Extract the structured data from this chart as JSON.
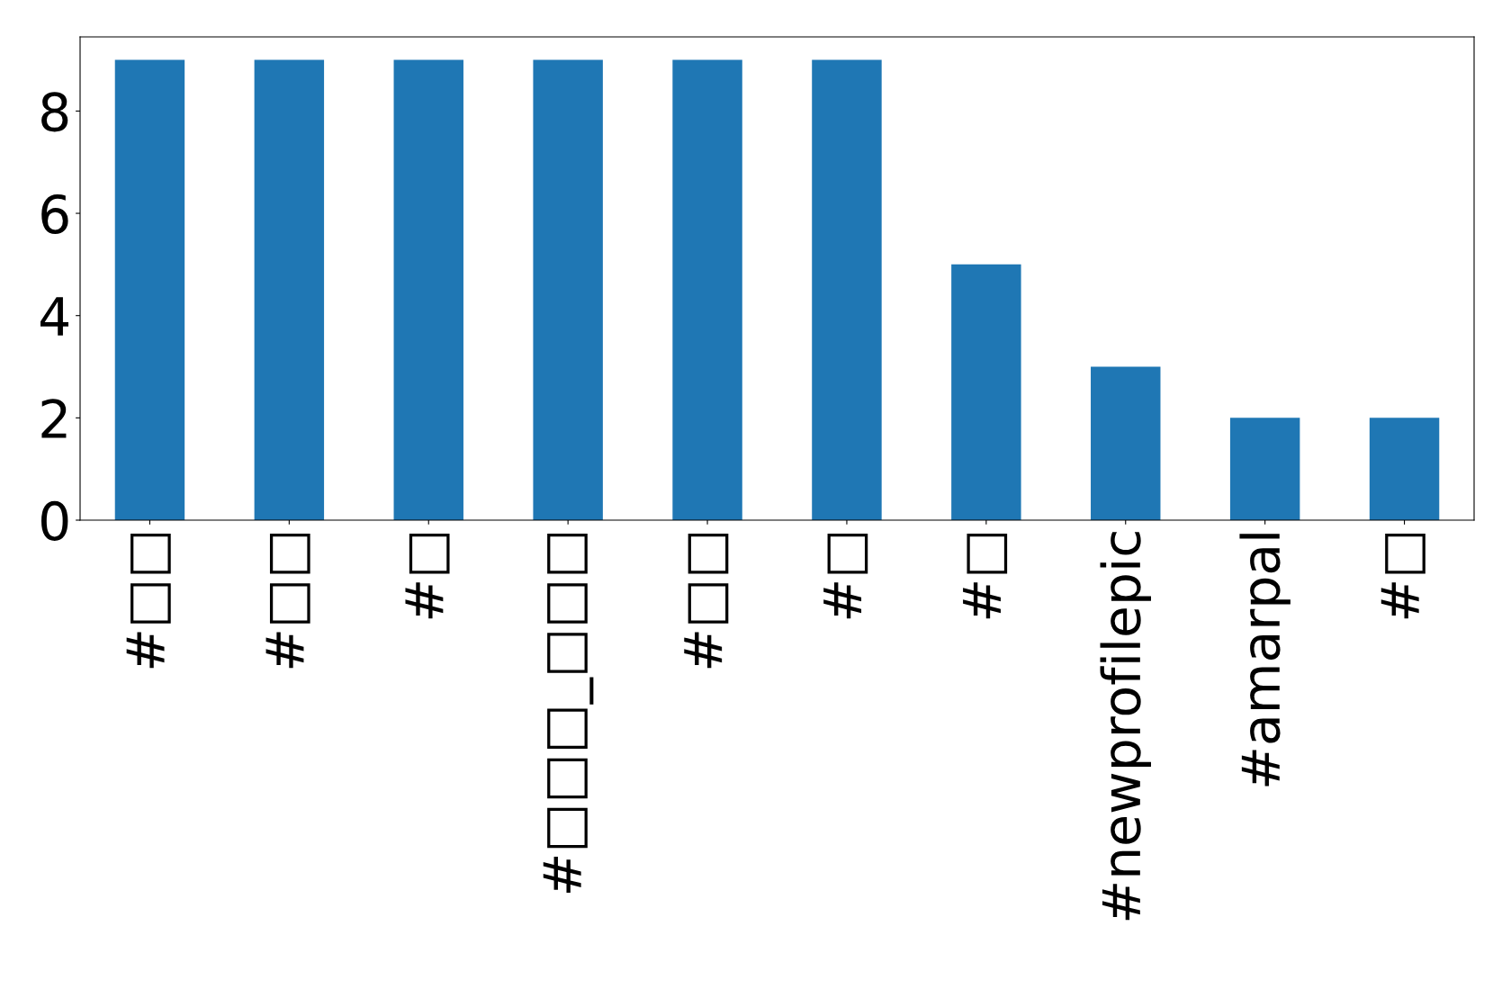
{
  "chart_data": {
    "type": "bar",
    "categories": [
      "#□□",
      "#□□",
      "#□",
      "#□□□_□□□",
      "#□□",
      "#□",
      "#□",
      "#newprofilepic",
      "#amarpal",
      "#□"
    ],
    "values": [
      9,
      9,
      9,
      9,
      9,
      9,
      5,
      3,
      2,
      2
    ],
    "color": "#1f77b4",
    "ylim": [
      0,
      9.45
    ],
    "yticks": [
      0,
      2,
      4,
      6,
      8
    ],
    "grid": false,
    "legend": false
  }
}
